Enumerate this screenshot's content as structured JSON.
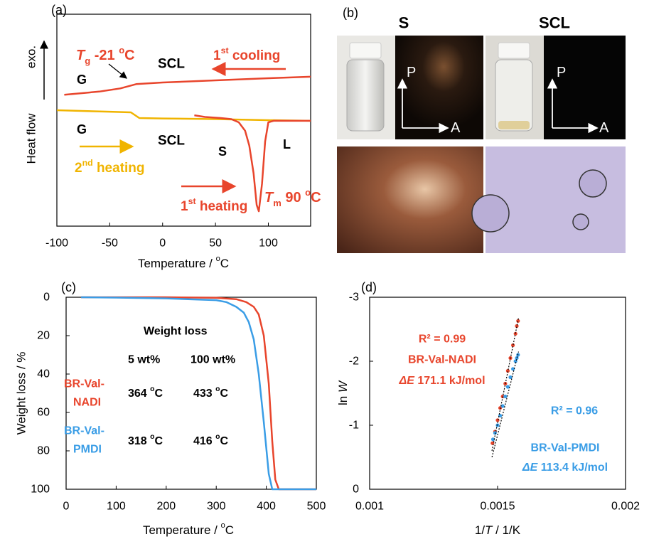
{
  "chart_data": [
    {
      "type": "line",
      "label": "(a)",
      "x_label": [
        "Temperature / ",
        "o",
        "C"
      ],
      "y_label": "Heat flow",
      "y_arrow_label": "exo.",
      "xlim": [
        -100,
        140
      ],
      "xticks": [
        -100,
        -50,
        0,
        50,
        100
      ],
      "ylim": [
        0,
        100
      ],
      "series": [
        {
          "color": "#e8452c",
          "x": [
            -93,
            -60,
            -40,
            -25,
            0,
            50,
            100,
            140
          ],
          "values": [
            62,
            63.5,
            65,
            67,
            67.8,
            68.8,
            69.8,
            70.5
          ]
        },
        {
          "color": "#f0b400",
          "x": [
            -100,
            -50,
            -30,
            -22,
            0,
            50,
            100,
            140
          ],
          "values": [
            54.7,
            54,
            53.7,
            51,
            50.8,
            50.5,
            50,
            49.7
          ]
        },
        {
          "color": "#e8452c",
          "x": [
            30,
            40,
            55,
            65,
            72,
            78,
            82,
            86,
            89,
            91,
            94,
            97,
            100,
            105,
            140
          ],
          "values": [
            52.3,
            51.5,
            51,
            50.5,
            49,
            45,
            38,
            25,
            10,
            7,
            20,
            40,
            49,
            49.7,
            49.7
          ]
        }
      ],
      "annotations": [
        [
          "T",
          "g",
          " -21 ",
          "o",
          "C"
        ],
        "SCL",
        [
          "1",
          "st",
          " cooling"
        ],
        "G",
        "G",
        "SCL",
        "S",
        "L",
        [
          "2",
          "nd",
          " heating"
        ],
        [
          "1",
          "st",
          " heating"
        ],
        [
          "T",
          "m",
          " 90 ",
          "o",
          "C"
        ]
      ]
    },
    {
      "type": "line",
      "label": "(c)",
      "x_label": [
        "Temperature / ",
        "o",
        "C"
      ],
      "y_label": "Weight loss / %",
      "xlim": [
        0,
        500
      ],
      "xticks": [
        0,
        100,
        200,
        300,
        400,
        500
      ],
      "ylim": [
        100,
        0
      ],
      "yticks": [
        0,
        20,
        40,
        60,
        80,
        100
      ],
      "series": [
        {
          "color": "#e8452c",
          "x": [
            30,
            100,
            200,
            300,
            340,
            360,
            375,
            385,
            395,
            405,
            412,
            418,
            425,
            500
          ],
          "values": [
            0,
            0,
            0,
            0.3,
            1,
            2.5,
            5,
            9,
            20,
            45,
            75,
            95,
            100,
            100
          ]
        },
        {
          "color": "#3a9de6",
          "x": [
            30,
            100,
            200,
            300,
            320,
            340,
            355,
            365,
            375,
            385,
            395,
            405,
            412,
            500
          ],
          "values": [
            0,
            0.2,
            0.6,
            1.5,
            2.5,
            5,
            8,
            13,
            22,
            40,
            65,
            92,
            100,
            100
          ]
        }
      ],
      "annotations": [
        "Weight loss",
        "5 wt%",
        "100 wt%",
        "BR-Val-",
        "NADI",
        [
          "364 ",
          "o",
          "C"
        ],
        [
          "433 ",
          "o",
          "C"
        ],
        "BR-Val-",
        "PMDI",
        [
          "318 ",
          "o",
          "C"
        ],
        [
          "416 ",
          "o",
          "C"
        ]
      ]
    },
    {
      "type": "scatter",
      "label": "(d)",
      "x_label": [
        "1/",
        "T",
        " / 1/K"
      ],
      "y_label": [
        "ln ",
        "W"
      ],
      "xlim": [
        0.001,
        0.002
      ],
      "xticks": [
        0.001,
        0.0015,
        0.002
      ],
      "ylim": [
        0,
        -3
      ],
      "yticks": [
        -3,
        -2,
        -1,
        0
      ],
      "series": [
        {
          "color": "#e8452c",
          "x": [
            0.00148,
            0.00149,
            0.0015,
            0.00151,
            0.00152,
            0.00153,
            0.00154,
            0.00155,
            0.00156,
            0.00157,
            0.001575,
            0.00158
          ],
          "values": [
            -0.72,
            -0.9,
            -1.08,
            -1.27,
            -1.45,
            -1.65,
            -1.85,
            -2.05,
            -2.25,
            -2.43,
            -2.55,
            -2.63
          ]
        },
        {
          "color": "#3a9de6",
          "x": [
            0.001482,
            0.00149,
            0.0015,
            0.00151,
            0.00152,
            0.00153,
            0.00154,
            0.00155,
            0.00156,
            0.00157,
            0.001575,
            0.00158
          ],
          "values": [
            -0.78,
            -0.88,
            -1.0,
            -1.15,
            -1.3,
            -1.45,
            -1.6,
            -1.75,
            -1.88,
            -2.0,
            -2.05,
            -2.1
          ]
        }
      ],
      "fits": [
        {
          "x": [
            0.001478,
            0.001582
          ],
          "values": [
            -0.6,
            -2.68
          ]
        },
        {
          "x": [
            0.001478,
            0.001582
          ],
          "values": [
            -0.5,
            -2.15
          ]
        }
      ],
      "annotations": [
        "R² = 0.99",
        "BR-Val-NADI",
        [
          "Δ",
          "E",
          " 171.1 kJ/mol"
        ],
        "R² = 0.96",
        "BR-Val-PMDI",
        [
          "Δ",
          "E",
          " 113.4 kJ/mol"
        ]
      ]
    }
  ],
  "images": {
    "label": "(b)",
    "titles": [
      "S",
      "SCL"
    ],
    "axis_labels": [
      "P",
      "A"
    ]
  }
}
